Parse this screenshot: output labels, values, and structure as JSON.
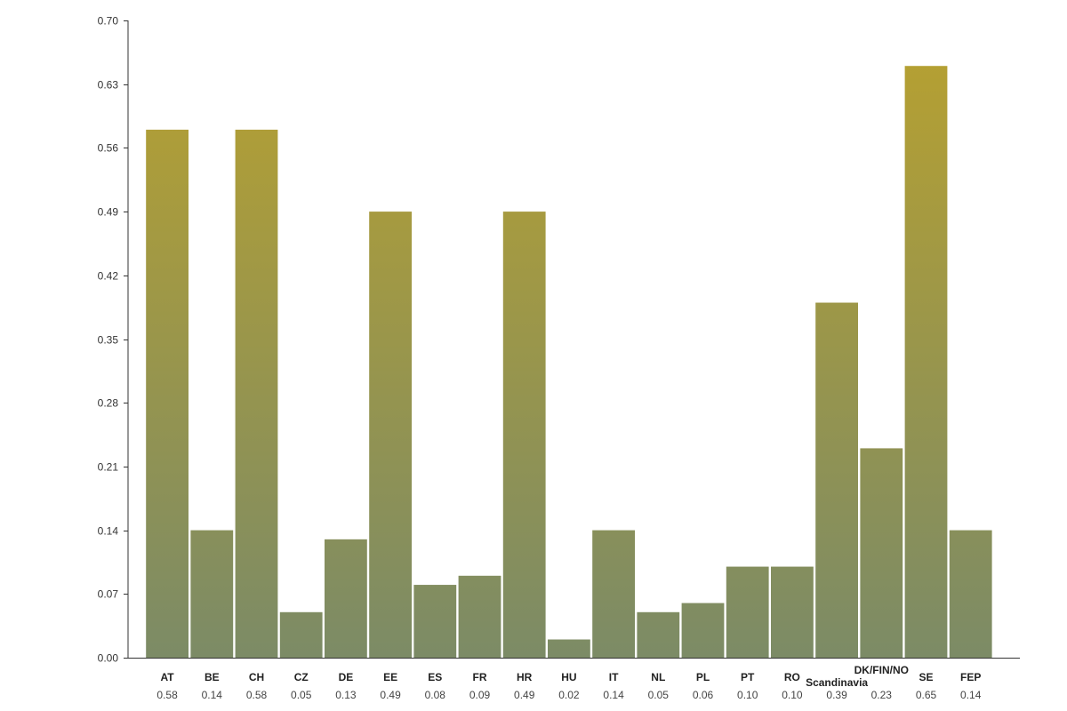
{
  "chart_data": {
    "type": "bar",
    "categories": [
      "AT",
      "BE",
      "CH",
      "CZ",
      "DE",
      "EE",
      "ES",
      "FR",
      "HR",
      "HU",
      "IT",
      "NL",
      "PL",
      "PT",
      "RO",
      "Scandinavia",
      "DK/FIN/NO",
      "SE",
      "FEP"
    ],
    "values": [
      0.58,
      0.14,
      0.58,
      0.05,
      0.13,
      0.49,
      0.08,
      0.09,
      0.49,
      0.02,
      0.14,
      0.05,
      0.06,
      0.1,
      0.1,
      0.39,
      0.23,
      0.65,
      0.14
    ],
    "value_labels": [
      "0.58",
      "0.14",
      "0.58",
      "0.05",
      "0.13",
      "0.49",
      "0.08",
      "0.09",
      "0.49",
      "0.02",
      "0.14",
      "0.05",
      "0.06",
      "0.10",
      "0.10",
      "0.39",
      "0.23",
      "0.65",
      "0.14"
    ],
    "ylim": [
      0,
      0.7
    ],
    "yticks": [
      "0.00",
      "0.07",
      "0.14",
      "0.21",
      "0.28",
      "0.35",
      "0.42",
      "0.49",
      "0.56",
      "0.63",
      "0.70"
    ],
    "ytick_values": [
      0,
      0.07,
      0.14,
      0.21,
      0.28,
      0.35,
      0.42,
      0.49,
      0.56,
      0.63,
      0.7
    ],
    "grid": false,
    "legend": "none",
    "colors": {
      "bar_top": "#b5a032",
      "bar_bottom": "#7c8b66",
      "axis": "#333333"
    }
  }
}
